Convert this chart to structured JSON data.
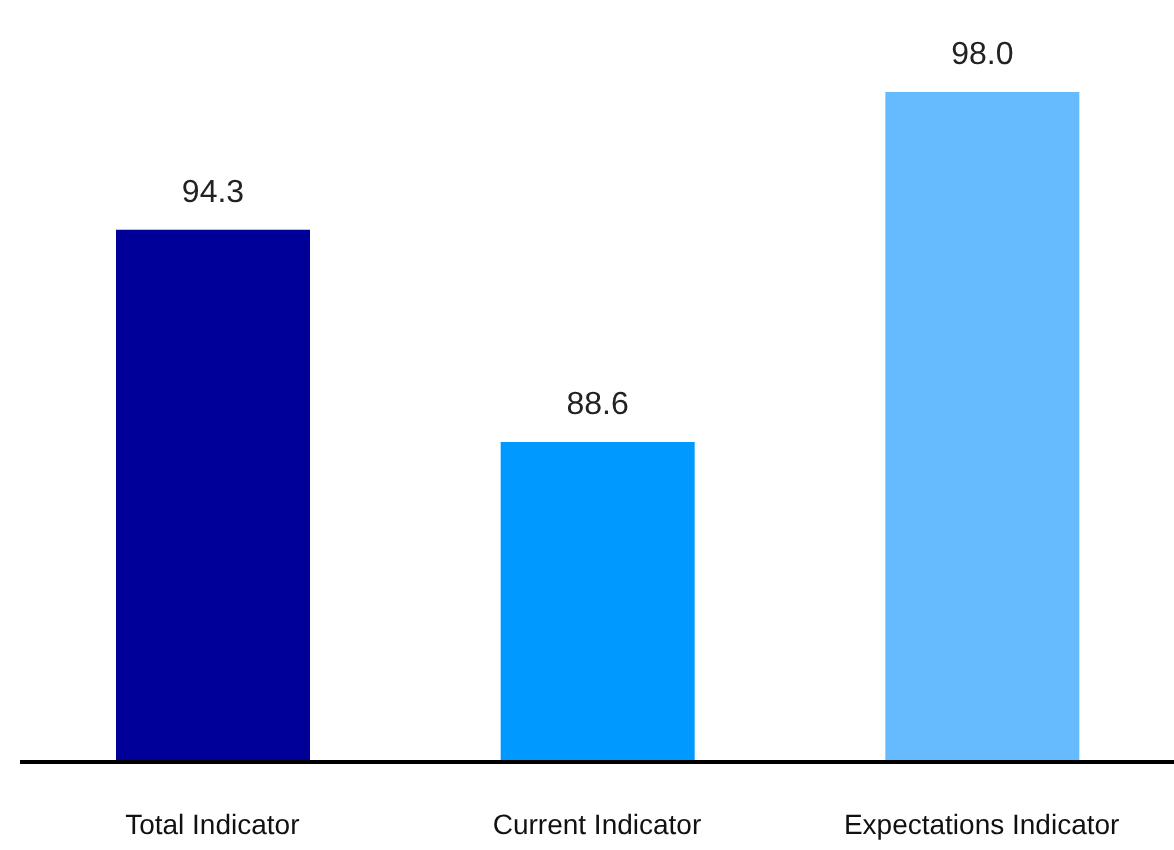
{
  "chart_data": {
    "type": "bar",
    "categories": [
      "Total  Indicator",
      "Current Indicator",
      "Expectations  Indicator"
    ],
    "values": [
      94.3,
      88.6,
      98.0
    ],
    "value_labels": [
      "94.3",
      "88.6",
      "98.0"
    ],
    "colors": [
      "#000099",
      "#0099ff",
      "#66bbff"
    ],
    "ylim": [
      80,
      98
    ]
  }
}
